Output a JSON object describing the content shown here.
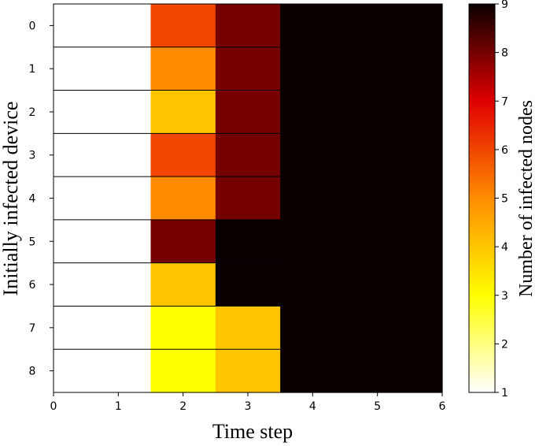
{
  "chart_data": {
    "type": "heatmap",
    "xlabel": "Time step",
    "ylabel": "Initially infected device",
    "x_ticks": [
      "0",
      "1",
      "2",
      "3",
      "4",
      "5",
      "6"
    ],
    "y_ticks": [
      "0",
      "1",
      "2",
      "3",
      "4",
      "5",
      "6",
      "7",
      "8"
    ],
    "xlim": [
      0,
      6
    ],
    "time_steps": [
      0,
      1,
      2,
      3,
      4,
      5,
      6
    ],
    "rows": [
      0,
      1,
      2,
      3,
      4,
      5,
      6,
      7,
      8
    ],
    "values": [
      [
        1,
        1,
        6,
        8,
        9,
        9,
        9
      ],
      [
        1,
        1,
        5,
        8,
        9,
        9,
        9
      ],
      [
        1,
        1,
        4,
        8,
        9,
        9,
        9
      ],
      [
        1,
        1,
        6,
        8,
        9,
        9,
        9
      ],
      [
        1,
        1,
        5,
        8,
        9,
        9,
        9
      ],
      [
        1,
        1,
        8,
        9,
        9,
        9,
        9
      ],
      [
        1,
        1,
        4,
        9,
        9,
        9,
        9
      ],
      [
        1,
        1,
        3,
        4,
        9,
        9,
        9
      ],
      [
        1,
        1,
        3,
        4,
        9,
        9,
        9
      ]
    ],
    "colorbar": {
      "label": "Number of infected nodes",
      "ticks": [
        "1",
        "2",
        "3",
        "4",
        "5",
        "6",
        "7",
        "8",
        "9"
      ],
      "range": [
        1,
        9
      ],
      "colormap": "hot_r"
    },
    "row_separators": true
  }
}
